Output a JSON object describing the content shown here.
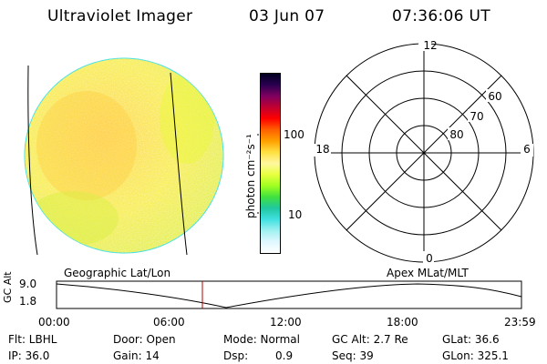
{
  "header": {
    "title": "Ultraviolet Imager",
    "date": "03 Jun 07",
    "time": "07:36:06 UT"
  },
  "image_panel": {
    "caption": "Geographic Lat/Lon"
  },
  "colorbar": {
    "label": "photon cm⁻²s⁻¹",
    "ticks": [
      "100",
      "10"
    ],
    "colors": [
      "#000020",
      "#2a0050",
      "#800060",
      "#c00030",
      "#ff0000",
      "#ff6000",
      "#ffa000",
      "#ffe040",
      "#fff8a0",
      "#e8ff40",
      "#a0ff20",
      "#40e040",
      "#20c8a0",
      "#40e0e0",
      "#a0f0f0",
      "#e0f8ff",
      "#ffffff"
    ]
  },
  "polar": {
    "caption": "Apex MLat/MLT",
    "mlt_labels": {
      "top": "12",
      "left": "18",
      "right": "6",
      "bottom": "0"
    },
    "lat_labels": [
      "60",
      "70",
      "80"
    ]
  },
  "timeline": {
    "ylabel": "GC Alt",
    "yticks": [
      "9.0",
      "1.8"
    ],
    "xticks": [
      "00:00",
      "06:00",
      "12:00",
      "18:00",
      "23:59"
    ],
    "current_time_marker": "07:36"
  },
  "info": {
    "flt": "Flt: LBHL",
    "ip": "IP: 36.0",
    "door": "Door: Open",
    "gain": "Gain: 14",
    "mode": "Mode: Normal",
    "dsp_label": "Dsp:",
    "dsp_value": "0.9",
    "gcalt": "GC Alt: 2.7 Re",
    "seq": "Seq: 39",
    "glat": "GLat:  36.6",
    "glon": "GLon: 325.1"
  }
}
